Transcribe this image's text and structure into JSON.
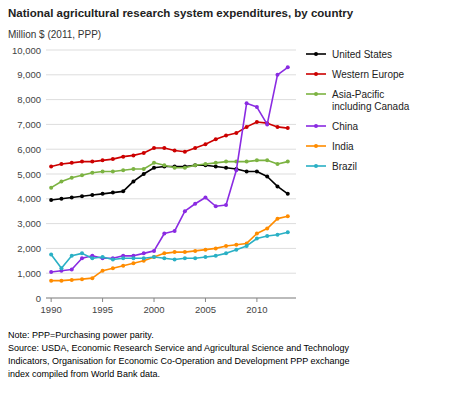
{
  "chart_data": {
    "type": "line",
    "title": "National agricultural research system expenditures, by country",
    "ylabel": "Million $ (2011, PPP)",
    "note": "Note: PPP=Purchasing power parity.\nSource: USDA, Economic Research Service and Agricultural Science and Technology\nIndicators, Organisation for Economic Co-Operation and Development PPP exchange\nindex compiled from World Bank data.",
    "x": [
      1990,
      1991,
      1992,
      1993,
      1994,
      1995,
      1996,
      1997,
      1998,
      1999,
      2000,
      2001,
      2002,
      2003,
      2004,
      2005,
      2006,
      2007,
      2008,
      2009,
      2010,
      2011,
      2012,
      2013
    ],
    "series": [
      {
        "name": "United States",
        "color": "#000000",
        "values": [
          3950,
          4000,
          4050,
          4100,
          4150,
          4200,
          4250,
          4300,
          4700,
          5000,
          5250,
          5300,
          5300,
          5300,
          5350,
          5350,
          5300,
          5250,
          5200,
          5100,
          5100,
          4900,
          4500,
          4200
        ]
      },
      {
        "name": "Western Europe",
        "color": "#cc0000",
        "values": [
          5300,
          5400,
          5450,
          5500,
          5500,
          5550,
          5600,
          5700,
          5750,
          5850,
          6050,
          6050,
          5950,
          5900,
          6050,
          6200,
          6400,
          6550,
          6650,
          6900,
          7100,
          7050,
          6900,
          6850
        ]
      },
      {
        "name": "Asia-Pacific\nincluding Canada",
        "color": "#7cb342",
        "values": [
          4450,
          4700,
          4850,
          4950,
          5050,
          5100,
          5100,
          5150,
          5200,
          5200,
          5450,
          5350,
          5250,
          5250,
          5350,
          5400,
          5450,
          5500,
          5500,
          5500,
          5550,
          5550,
          5400,
          5500
        ]
      },
      {
        "name": "China",
        "color": "#8a2be2",
        "values": [
          1050,
          1100,
          1150,
          1600,
          1700,
          1600,
          1600,
          1700,
          1700,
          1800,
          1900,
          2600,
          2700,
          3500,
          3800,
          4050,
          3700,
          3750,
          5150,
          7850,
          7700,
          7000,
          9000,
          9300
        ]
      },
      {
        "name": "India",
        "color": "#ff8c00",
        "values": [
          700,
          700,
          730,
          760,
          800,
          1100,
          1200,
          1300,
          1400,
          1500,
          1650,
          1800,
          1850,
          1850,
          1900,
          1950,
          2000,
          2100,
          2150,
          2200,
          2600,
          2800,
          3200,
          3300
        ]
      },
      {
        "name": "Brazil",
        "color": "#2ab0c5",
        "values": [
          1750,
          1200,
          1700,
          1800,
          1600,
          1650,
          1550,
          1600,
          1600,
          1600,
          1650,
          1600,
          1550,
          1600,
          1600,
          1650,
          1700,
          1800,
          1950,
          2100,
          2400,
          2500,
          2550,
          2650
        ]
      }
    ],
    "xlim": [
      1989.5,
      2013.8
    ],
    "xticks": [
      1990,
      1995,
      2000,
      2005,
      2010
    ],
    "ylim": [
      0,
      10000
    ],
    "yticks": [
      0,
      {
        "value": 1000,
        "label": "1,000"
      },
      {
        "value": 2000,
        "label": "2,000"
      },
      {
        "value": 3000,
        "label": "3,000"
      },
      {
        "value": 4000,
        "label": "4,000"
      },
      {
        "value": 5000,
        "label": "5,000"
      },
      {
        "value": 6000,
        "label": "6,000"
      },
      {
        "value": 7000,
        "label": "7,000"
      },
      {
        "value": 8000,
        "label": "8,000"
      },
      {
        "value": 9000,
        "label": "9,000"
      },
      {
        "value": 10000,
        "label": "10,000"
      }
    ],
    "grid": true,
    "legend": "right",
    "marker": "circle"
  }
}
